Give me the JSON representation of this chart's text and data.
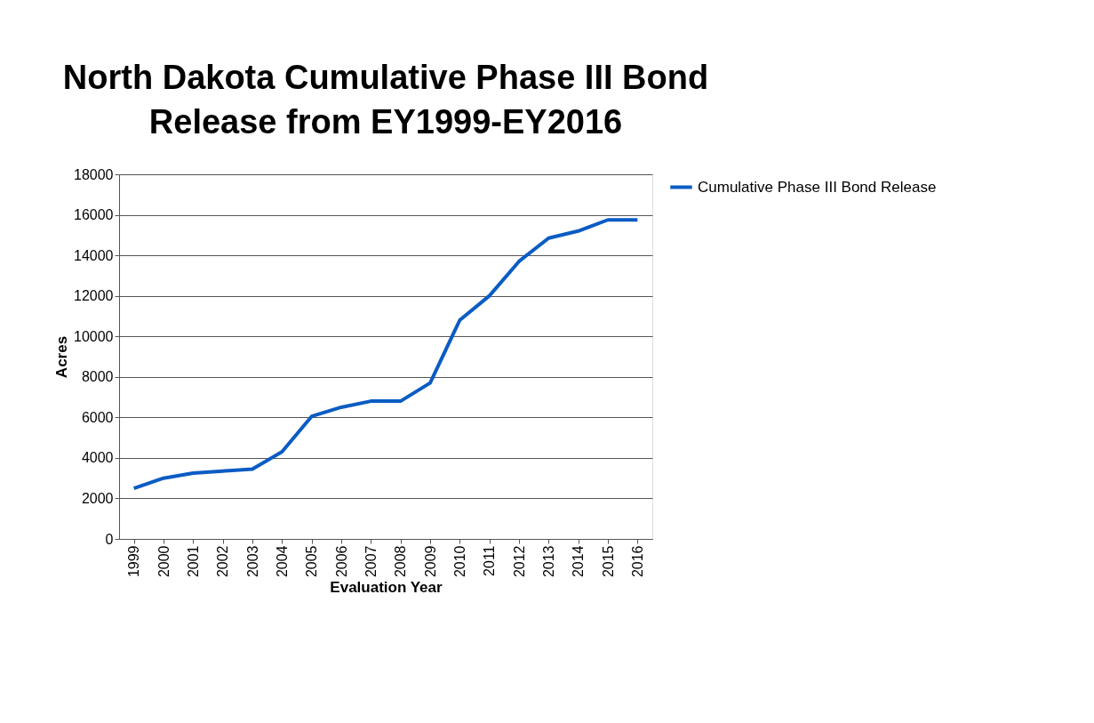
{
  "chart_data": {
    "type": "line",
    "title": "North Dakota Cumulative Phase III Bond Release from EY1999-EY2016",
    "xlabel": "Evaluation Year",
    "ylabel": "Acres",
    "categories": [
      "1999",
      "2000",
      "2001",
      "2002",
      "2003",
      "2004",
      "2005",
      "2006",
      "2007",
      "2008",
      "2009",
      "2010",
      "2011",
      "2012",
      "2013",
      "2014",
      "2015",
      "2016"
    ],
    "series": [
      {
        "name": "Cumulative Phase III Bond Release",
        "color": "#0a5cc4",
        "values": [
          2500,
          3000,
          3250,
          3350,
          3450,
          4300,
          6050,
          6500,
          6800,
          6800,
          7700,
          10800,
          12000,
          13700,
          14850,
          15200,
          15750,
          15750
        ]
      }
    ],
    "ylim": [
      0,
      18000
    ],
    "yticks": [
      0,
      2000,
      4000,
      6000,
      8000,
      10000,
      12000,
      14000,
      16000,
      18000
    ],
    "grid": "y",
    "legend": "right",
    "marker": "none",
    "line_style": "solid"
  }
}
